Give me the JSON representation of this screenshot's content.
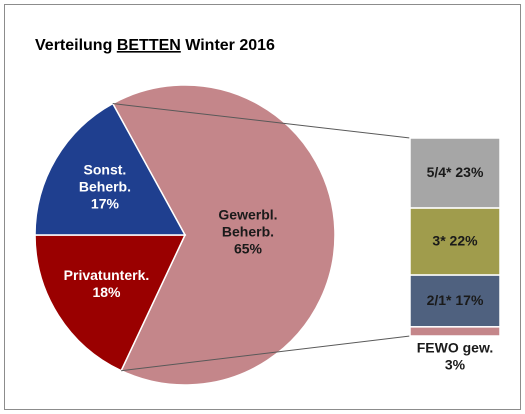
{
  "chart_data": {
    "type": "pie_of_bar",
    "title": [
      "Verteilung",
      "BETTEN",
      "Winter 2016"
    ],
    "title_underline": 1,
    "categories": [
      [
        "Gewerbl.",
        "Beherb."
      ],
      [
        "Privatunterk."
      ],
      [
        "Sonst.",
        "Beherb."
      ]
    ],
    "values": [
      65,
      18,
      17
    ],
    "value_labels": [
      "65%",
      "18%",
      "17%"
    ],
    "colors": [
      "#c4868a",
      "#9a0000",
      "#1f3f8f"
    ],
    "label_colors": [
      "#1a1a1a",
      "#ffffff",
      "#ffffff"
    ],
    "breakdown": {
      "categories": [
        "5/4*",
        "3*",
        "2/1*",
        "FEWO gew."
      ],
      "values": [
        23,
        22,
        17,
        3
      ],
      "value_labels": [
        "23%",
        "22%",
        "17%",
        "3%"
      ],
      "colors": [
        "#a6a6a6",
        "#a09c4c",
        "#4f617f",
        "#c4868a"
      ]
    }
  }
}
